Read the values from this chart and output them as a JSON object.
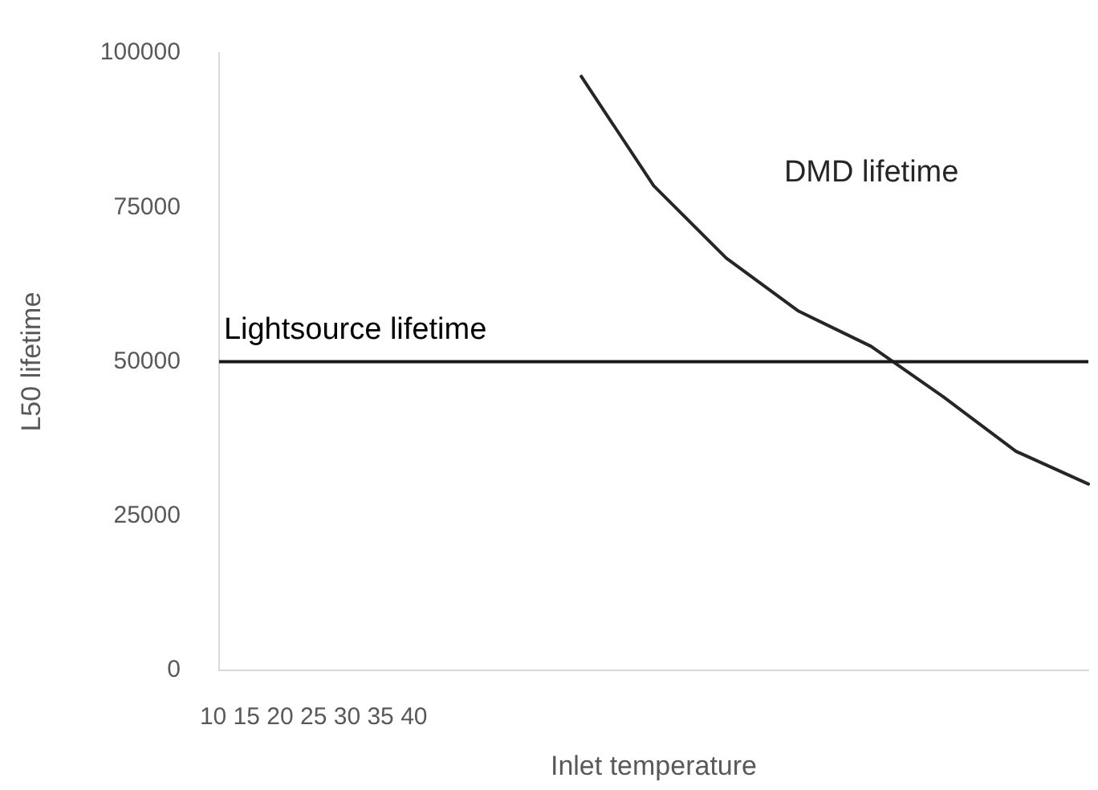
{
  "chart_data": {
    "type": "line",
    "xlabel": "Inlet temperature",
    "ylabel": "L50 lifetime",
    "categories": [
      null,
      null,
      null,
      null,
      null,
      null,
      null,
      null,
      null,
      null,
      null,
      null,
      null
    ],
    "series": [
      {
        "name": "DMD lifetime",
        "color": "#262626",
        "values": [
          null,
          null,
          null,
          null,
          null,
          96200,
          78500,
          66800,
          58200,
          52500,
          44300,
          35500,
          30200
        ]
      }
    ],
    "ylim": [
      0,
      100000
    ],
    "yticks": [
      0,
      25000,
      50000,
      75000,
      100000
    ],
    "ref_lines": [
      {
        "axis": "y",
        "value": 50000,
        "label": "Lightsource lifetime",
        "color": "#1a1a1a"
      }
    ],
    "annotations": [
      "10 15 20 25 30 35 40"
    ],
    "tick_labels": "y",
    "grid": false,
    "legend": false,
    "marker": "none",
    "line_style": "solid"
  }
}
